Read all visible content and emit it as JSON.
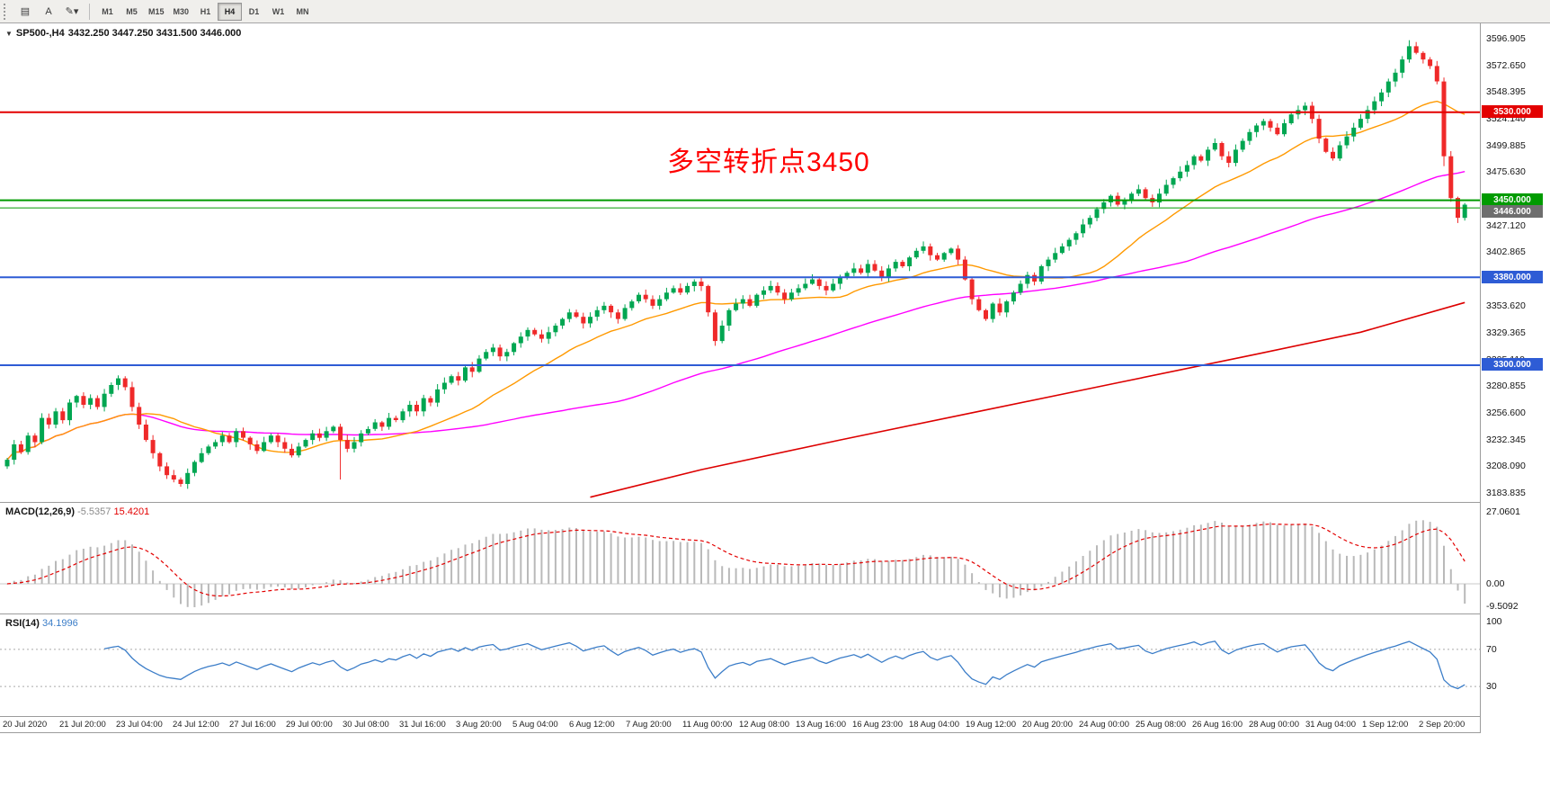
{
  "toolbar": {
    "icons": [
      {
        "name": "tile-windows-icon",
        "glyph": "▤"
      },
      {
        "name": "cursor-tool-icon",
        "glyph": "A"
      },
      {
        "name": "draw-tools-icon",
        "glyph": "✎▾"
      }
    ],
    "timeframes": [
      "M1",
      "M5",
      "M15",
      "M30",
      "H1",
      "H4",
      "D1",
      "W1",
      "MN"
    ],
    "active_timeframe": "H4"
  },
  "chart": {
    "symbol_title": "SP500-,H4",
    "ohlc": "3432.250 3447.250 3431.500 3446.000",
    "annotation": "多空转折点3450",
    "annotation_color": "#ff0000",
    "price_axis_labels": [
      "3596.905",
      "3572.650",
      "3548.395",
      "3524.140",
      "3499.885",
      "3475.630",
      "3427.120",
      "3402.865",
      "3353.620",
      "3329.365",
      "3305.110",
      "3280.855",
      "3256.600",
      "3232.345",
      "3208.090",
      "3183.835"
    ],
    "hlines": [
      {
        "price": 3530.0,
        "color": "#e30000",
        "badge": "3530.000",
        "width": 2
      },
      {
        "price": 3450.0,
        "color": "#009b00",
        "badge": "3450.000",
        "width": 2
      },
      {
        "price": 3443.0,
        "color": "#009b00",
        "badge": null,
        "width": 1
      },
      {
        "price": 3380.0,
        "color": "#2e5cd5",
        "badge": "3380.000",
        "width": 2
      },
      {
        "price": 3300.0,
        "color": "#2e5cd5",
        "badge": "3300.000",
        "width": 2
      }
    ],
    "current_price_badge": {
      "price": 3446.0,
      "label": "3446.000",
      "bg": "#6e6e6e"
    }
  },
  "chart_data": {
    "type": "candlestick",
    "symbol": "SP500",
    "timeframe": "H4",
    "ylim": [
      3183.835,
      3596.905
    ],
    "first_open": 3208.0,
    "closes": [
      3214,
      3228,
      3221,
      3236,
      3230,
      3252,
      3246,
      3258,
      3250,
      3266,
      3272,
      3264,
      3270,
      3262,
      3274,
      3282,
      3288,
      3280,
      3262,
      3246,
      3232,
      3220,
      3208,
      3200,
      3196,
      3192,
      3202,
      3212,
      3220,
      3226,
      3230,
      3236,
      3230,
      3240,
      3234,
      3228,
      3222,
      3230,
      3236,
      3230,
      3224,
      3218,
      3226,
      3232,
      3238,
      3234,
      3240,
      3244,
      3232,
      3224,
      3230,
      3238,
      3242,
      3248,
      3244,
      3252,
      3250,
      3258,
      3264,
      3258,
      3270,
      3266,
      3278,
      3284,
      3290,
      3286,
      3298,
      3294,
      3306,
      3312,
      3316,
      3308,
      3312,
      3320,
      3326,
      3332,
      3328,
      3324,
      3330,
      3336,
      3342,
      3348,
      3344,
      3338,
      3344,
      3350,
      3354,
      3348,
      3342,
      3352,
      3358,
      3364,
      3360,
      3354,
      3360,
      3366,
      3370,
      3366,
      3372,
      3376,
      3372,
      3348,
      3322,
      3336,
      3350,
      3356,
      3360,
      3354,
      3364,
      3368,
      3372,
      3366,
      3360,
      3366,
      3370,
      3374,
      3378,
      3372,
      3368,
      3374,
      3380,
      3384,
      3388,
      3384,
      3392,
      3386,
      3380,
      3388,
      3394,
      3390,
      3398,
      3404,
      3408,
      3400,
      3396,
      3402,
      3406,
      3396,
      3378,
      3360,
      3350,
      3342,
      3356,
      3348,
      3358,
      3366,
      3374,
      3382,
      3376,
      3390,
      3396,
      3402,
      3408,
      3414,
      3420,
      3428,
      3434,
      3442,
      3448,
      3454,
      3446,
      3450,
      3456,
      3460,
      3452,
      3448,
      3456,
      3464,
      3470,
      3476,
      3482,
      3490,
      3486,
      3496,
      3502,
      3490,
      3484,
      3496,
      3504,
      3512,
      3518,
      3522,
      3516,
      3510,
      3520,
      3528,
      3532,
      3536,
      3524,
      3506,
      3494,
      3488,
      3500,
      3508,
      3516,
      3524,
      3532,
      3540,
      3548,
      3558,
      3566,
      3578,
      3590,
      3584,
      3578,
      3572,
      3558,
      3490,
      3452,
      3434,
      3446
    ],
    "wick_overrides": {
      "48": {
        "low": 3196.0
      },
      "202": {
        "high": 3595.5
      },
      "207": {
        "low": 3481.0
      },
      "210": {
        "low": 3431.5
      }
    },
    "colors": {
      "up": "#00a651",
      "down": "#ef2929",
      "ma_fast": "#ff9900",
      "ma_mid": "#ff00ff",
      "ma_slow": "#dd0000"
    },
    "ma_fast_period": 20,
    "ma_mid_period": 70,
    "ma_slow_waypoints": [
      [
        84,
        3180
      ],
      [
        100,
        3205
      ],
      [
        120,
        3232
      ],
      [
        140,
        3258
      ],
      [
        160,
        3284
      ],
      [
        180,
        3310
      ],
      [
        195,
        3330
      ],
      [
        210,
        3357
      ]
    ]
  },
  "macd": {
    "label": "MACD(12,26,9)",
    "value_main": "-5.5357",
    "value_signal": "15.4201",
    "params": {
      "fast": 12,
      "slow": 26,
      "signal": 9
    },
    "axis_labels": [
      {
        "text": "27.0601",
        "value": 27.0601
      },
      {
        "text": "0.00",
        "value": 0
      },
      {
        "text": "-9.5092",
        "value": -9.5092
      }
    ],
    "colors": {
      "histogram": "#b9b9b9",
      "signal": "#e30000"
    }
  },
  "rsi": {
    "label": "RSI(14)",
    "value": "34.1996",
    "period": 14,
    "axis_labels": [
      {
        "text": "100",
        "value": 100
      },
      {
        "text": "70",
        "value": 70
      },
      {
        "text": "30",
        "value": 30
      }
    ],
    "levels": [
      70,
      30
    ],
    "color": "#3b7dc8"
  },
  "time_axis": [
    "20 Jul 2020",
    "21 Jul 20:00",
    "23 Jul 04:00",
    "24 Jul 12:00",
    "27 Jul 16:00",
    "29 Jul 00:00",
    "30 Jul 08:00",
    "31 Jul 16:00",
    "3 Aug 20:00",
    "5 Aug 04:00",
    "6 Aug 12:00",
    "7 Aug 20:00",
    "11 Aug 00:00",
    "12 Aug 08:00",
    "13 Aug 16:00",
    "16 Aug 23:00",
    "18 Aug 04:00",
    "19 Aug 12:00",
    "20 Aug 20:00",
    "24 Aug 00:00",
    "25 Aug 08:00",
    "26 Aug 16:00",
    "28 Aug 00:00",
    "31 Aug 04:00",
    "1 Sep 12:00",
    "2 Sep 20:00"
  ]
}
